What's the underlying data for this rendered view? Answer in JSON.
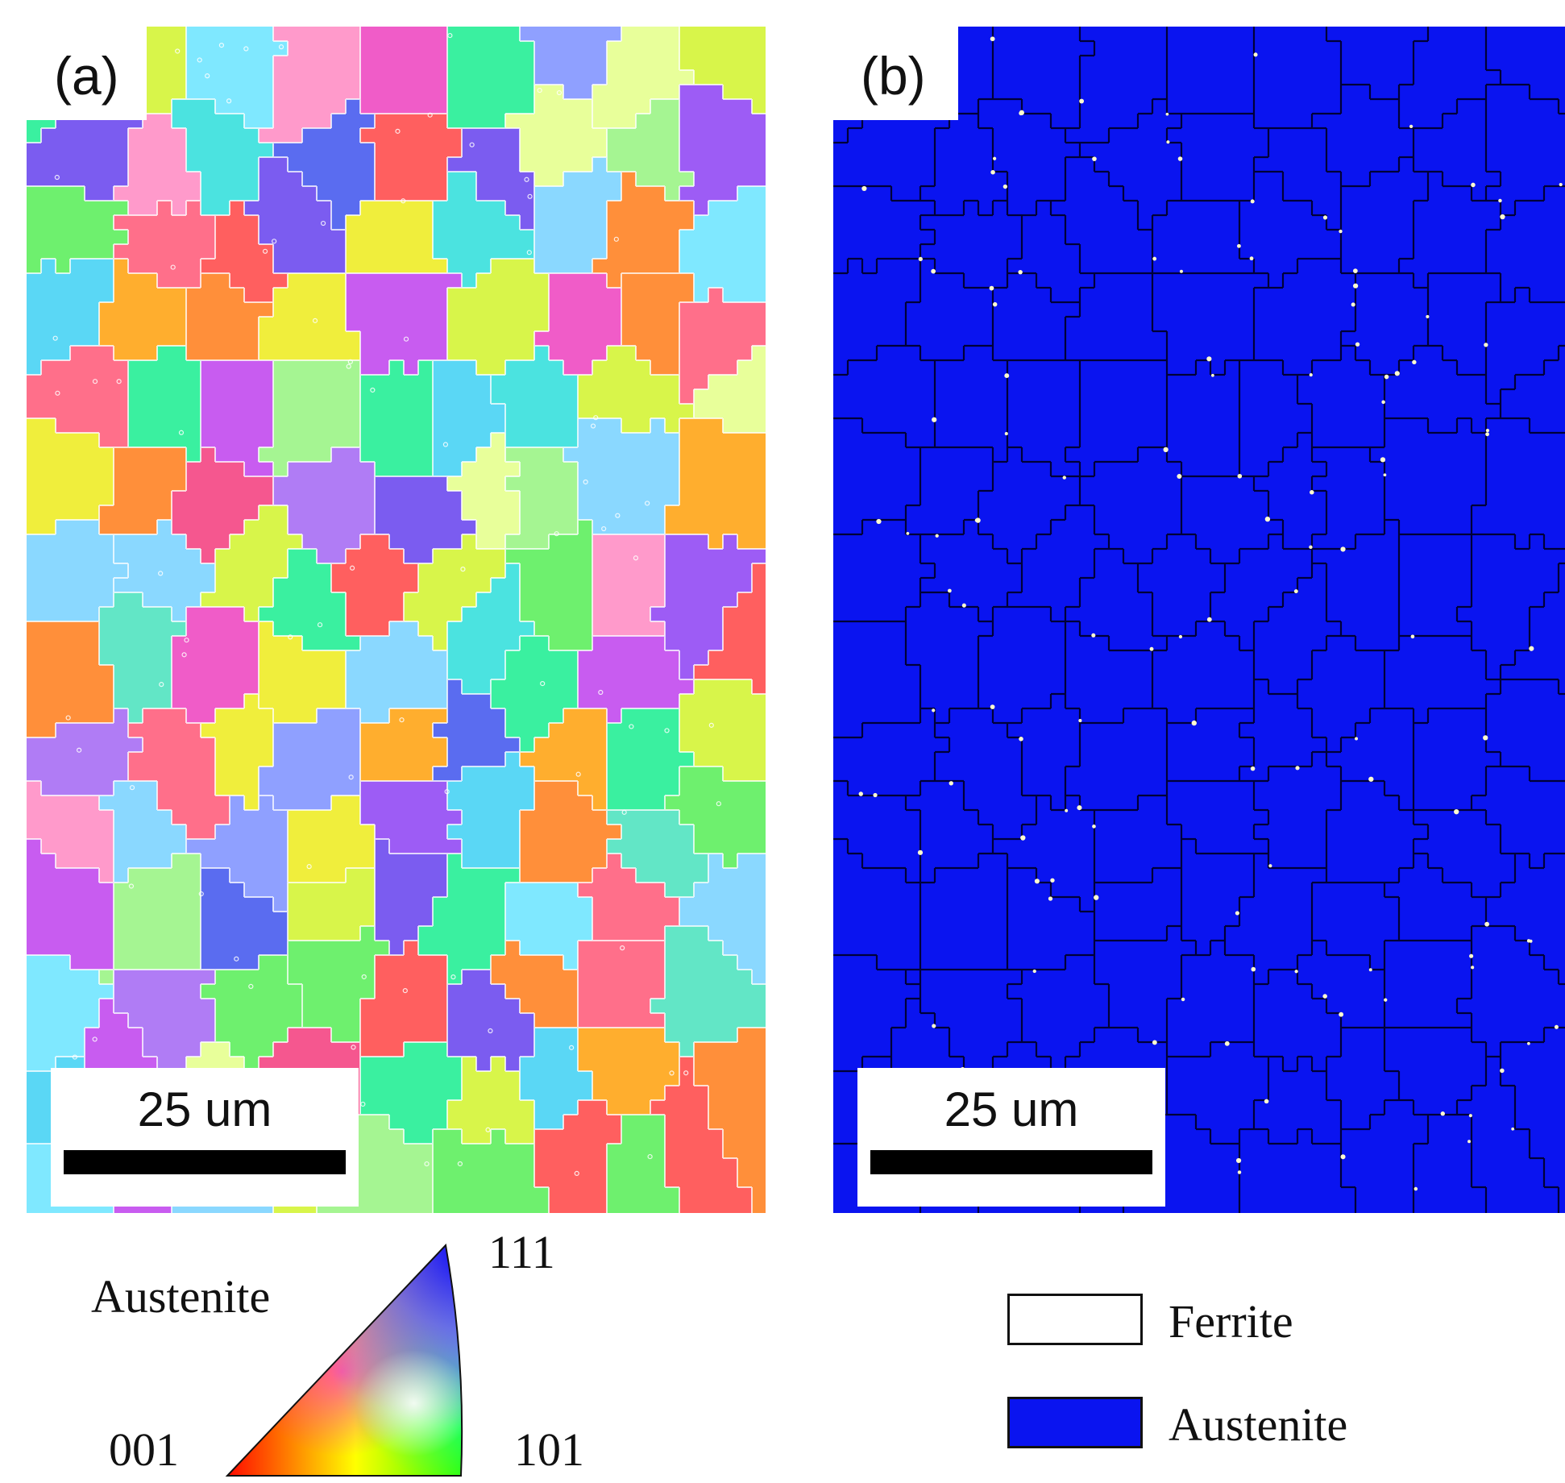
{
  "figure": {
    "panel_a": {
      "label": "(a)",
      "map_type": "inverse-pole-figure orientation map",
      "scale_bar": {
        "label": "25 um"
      }
    },
    "panel_b": {
      "label": "(b)",
      "map_type": "phase map",
      "scale_bar": {
        "label": "25 um"
      }
    },
    "ipf_legend": {
      "title": "Austenite",
      "corners": {
        "c111": "111",
        "c001": "001",
        "c101": "101"
      },
      "colors": {
        "c001": "#ff0000",
        "c101": "#00ff00",
        "c111": "#0000ff"
      }
    },
    "phase_legend": {
      "items": [
        {
          "label": "Ferrite",
          "color": "#ffffff"
        },
        {
          "label": "Austenite",
          "color": "#0a14f0"
        }
      ]
    }
  }
}
